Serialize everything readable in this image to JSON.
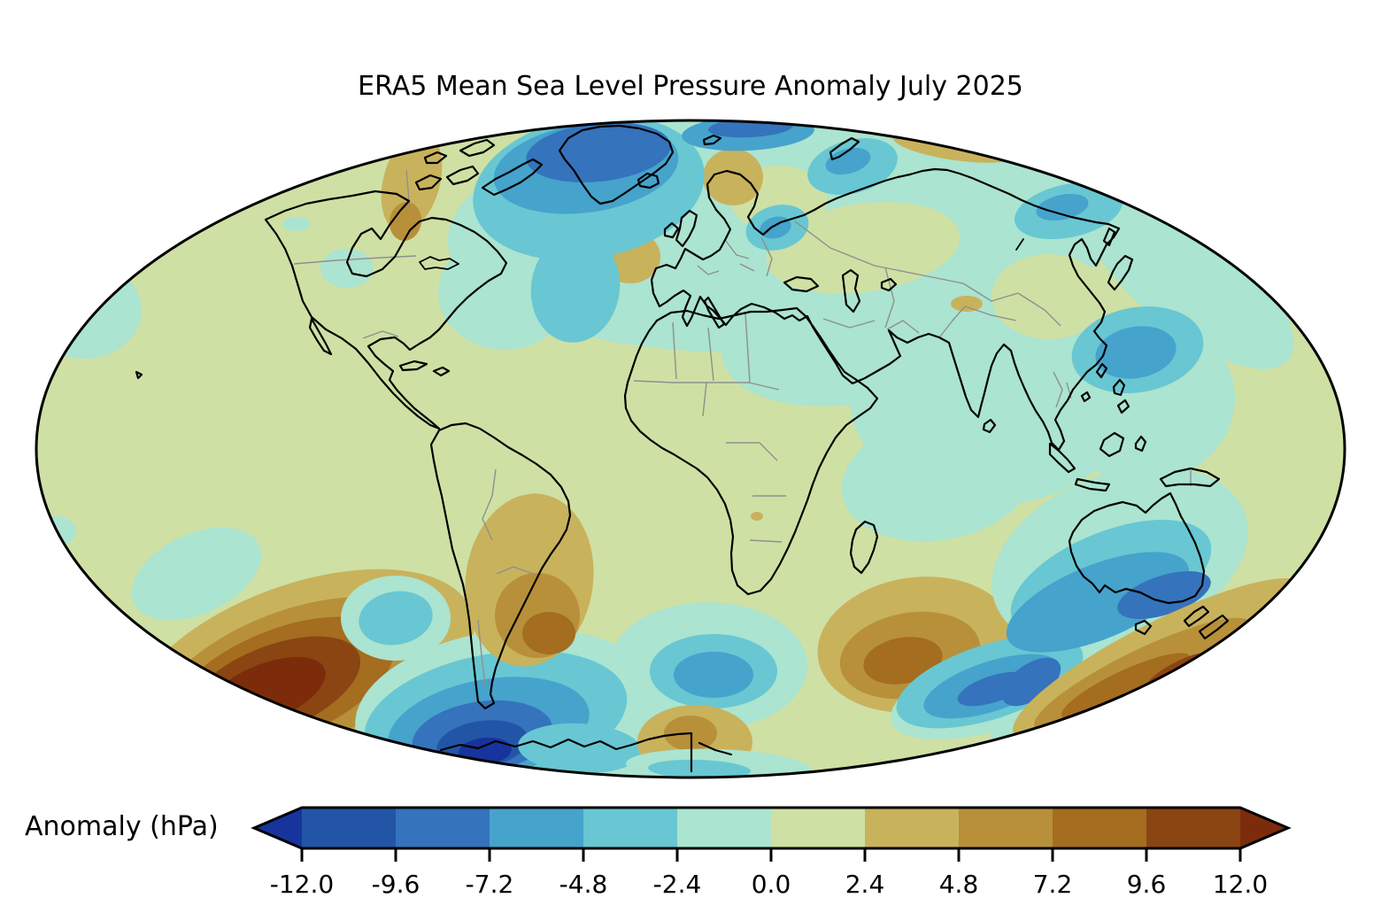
{
  "title": "ERA5 Mean Sea Level Pressure Anomaly July 2025",
  "colorbar": {
    "label": "Anomaly (hPa)",
    "tick_labels": [
      "-12.0",
      "-9.6",
      "-7.2",
      "-4.8",
      "-2.4",
      "0.0",
      "2.4",
      "4.8",
      "7.2",
      "9.6",
      "12.0"
    ],
    "segment_colors": [
      "#2355a7",
      "#3573bc",
      "#46a3cc",
      "#68c7d2",
      "#abe4d0",
      "#cfe0a4",
      "#c9b25c",
      "#b8903a",
      "#a46d20",
      "#8a4513"
    ],
    "extend_low_color": "#16349c",
    "extend_high_color": "#7c2c0a"
  },
  "chart_data": {
    "type": "heatmap",
    "title": "ERA5 Mean Sea Level Pressure Anomaly July 2025",
    "variable": "Mean sea level pressure anomaly",
    "units": "hPa",
    "projection": "Mollweide",
    "colorbar_label": "Anomaly (hPa)",
    "levels": [
      -12,
      -9.6,
      -7.2,
      -4.8,
      -2.4,
      0,
      2.4,
      4.8,
      7.2,
      9.6,
      12
    ],
    "palette": [
      "#16349c",
      "#2355a7",
      "#3573bc",
      "#46a3cc",
      "#68c7d2",
      "#abe4d0",
      "#cfe0a4",
      "#c9b25c",
      "#b8903a",
      "#a46d20",
      "#8a4513",
      "#7c2c0a"
    ],
    "palette_bins": [
      "< -12",
      "-12..-9.6",
      "-9.6..-7.2",
      "-7.2..-4.8",
      "-4.8..-2.4",
      "-2.4..0",
      "0..2.4",
      "2.4..4.8",
      "4.8..7.2",
      "7.2..9.6",
      "9.6..12",
      "> 12"
    ],
    "base_bin": 6,
    "features_format": "[name, cx_px, cy_px, rx_px, ry_px, rotation_deg, palette_bin_index]",
    "features": [
      [
        "arctic-eurasia-neg",
        890,
        255,
        385,
        142,
        -3,
        5
      ],
      [
        "mideast-neg",
        990,
        360,
        180,
        90,
        -15,
        5
      ],
      [
        "south-asia-neg",
        1120,
        450,
        160,
        120,
        0,
        5
      ],
      [
        "indian-ocean-neg",
        1060,
        540,
        110,
        70,
        -10,
        5
      ],
      [
        "east-asia-neg",
        1290,
        450,
        105,
        95,
        0,
        5
      ],
      [
        "northeast-rim-neg",
        1340,
        310,
        150,
        60,
        40,
        5
      ],
      [
        "nw-atlantic-neg",
        570,
        330,
        75,
        65,
        0,
        5
      ],
      [
        "canada-prairie-neg",
        392,
        303,
        30,
        22,
        0,
        5
      ],
      [
        "east-pacific-neg",
        95,
        350,
        65,
        55,
        0,
        5
      ],
      [
        "left-rim-neg",
        60,
        600,
        26,
        18,
        0,
        5
      ],
      [
        "bering-neg",
        335,
        253,
        16,
        8,
        0,
        5
      ],
      [
        "west-russia-neutral",
        975,
        280,
        110,
        50,
        -8,
        6
      ],
      [
        "scandinavia-neutral",
        880,
        225,
        55,
        38,
        0,
        6
      ],
      [
        "east-china-neutral",
        1185,
        335,
        65,
        48,
        0,
        6
      ],
      [
        "scandinavia-pos",
        828,
        200,
        34,
        32,
        0,
        7
      ],
      [
        "yukon-pos",
        465,
        205,
        32,
        58,
        15,
        7
      ],
      [
        "yukon-pos-core",
        458,
        250,
        18,
        22,
        10,
        8
      ],
      [
        "siberia-rim-pos",
        1080,
        165,
        72,
        16,
        8,
        7
      ],
      [
        "biscay-pos",
        712,
        290,
        34,
        30,
        0,
        7
      ],
      [
        "tibet-pos",
        1092,
        343,
        18,
        9,
        0,
        7
      ],
      [
        "angola-pos",
        855,
        583,
        7,
        5,
        0,
        7
      ],
      [
        "greenland-neg-l1",
        665,
        212,
        132,
        80,
        -10,
        4
      ],
      [
        "atlantic-tongue-neg",
        650,
        325,
        50,
        62,
        8,
        4
      ],
      [
        "greenland-neg-l2",
        662,
        190,
        105,
        50,
        -8,
        3
      ],
      [
        "greenland-neg-l3",
        676,
        172,
        82,
        33,
        -6,
        2
      ],
      [
        "svalbard-neg-l2",
        845,
        150,
        75,
        20,
        -3,
        3
      ],
      [
        "svalbard-neg-l3",
        848,
        144,
        48,
        11,
        -3,
        2
      ],
      [
        "kara-neg-l1",
        963,
        188,
        52,
        30,
        -15,
        4
      ],
      [
        "kara-neg-l2",
        958,
        182,
        26,
        14,
        -15,
        3
      ],
      [
        "east-siberia-neg-l1",
        1207,
        238,
        62,
        30,
        -12,
        4
      ],
      [
        "east-siberia-neg-l2",
        1200,
        234,
        30,
        14,
        -12,
        3
      ],
      [
        "baltic-neg-l1",
        878,
        257,
        36,
        25,
        -15,
        4
      ],
      [
        "baltic-neg-l2",
        876,
        257,
        18,
        12,
        -15,
        3
      ],
      [
        "nw-pacific-neg-l1",
        1285,
        395,
        75,
        48,
        -10,
        4
      ],
      [
        "nw-pacific-neg-l2",
        1283,
        398,
        46,
        29,
        -10,
        3
      ],
      [
        "south-pacific-pos-l1",
        340,
        760,
        205,
        100,
        -20,
        7
      ],
      [
        "south-pacific-pos-l2",
        330,
        768,
        165,
        78,
        -21,
        8
      ],
      [
        "south-pacific-pos-l3",
        318,
        773,
        135,
        62,
        -22,
        9
      ],
      [
        "south-pacific-pos-l4",
        308,
        778,
        105,
        48,
        -22,
        10
      ],
      [
        "south-pacific-pos-l5",
        300,
        782,
        72,
        32,
        -22,
        11
      ],
      [
        "south-indian-pos-l1",
        1035,
        728,
        112,
        76,
        -8,
        7
      ],
      [
        "south-indian-pos-l2",
        1028,
        740,
        80,
        48,
        -10,
        8
      ],
      [
        "south-indian-pos-l3",
        1020,
        746,
        45,
        26,
        -10,
        9
      ],
      [
        "se-pacific-neg-a",
        222,
        648,
        78,
        45,
        -25,
        5
      ],
      [
        "se-pacific-neg-b",
        447,
        698,
        62,
        48,
        0,
        5
      ],
      [
        "se-pacific-neg-b-core",
        447,
        698,
        42,
        30,
        -10,
        4
      ],
      [
        "southam-south-neg-l0",
        570,
        800,
        170,
        88,
        -8,
        5
      ],
      [
        "south-atlantic-neg-l0",
        800,
        752,
        112,
        72,
        0,
        5
      ],
      [
        "antarctic-band-neg",
        660,
        832,
        120,
        48,
        4,
        5
      ],
      [
        "south-indian-band-neg",
        1140,
        772,
        140,
        48,
        -18,
        5
      ],
      [
        "australia-neg-l0",
        1265,
        630,
        150,
        95,
        -20,
        5
      ],
      [
        "nz-rim-neg",
        1240,
        790,
        130,
        40,
        -22,
        5
      ],
      [
        "southam-south-neg-l1",
        560,
        810,
        150,
        72,
        -10,
        4
      ],
      [
        "southam-south-neg-l2",
        552,
        822,
        115,
        55,
        -10,
        3
      ],
      [
        "southam-south-neg-l3",
        545,
        832,
        80,
        40,
        -8,
        2
      ],
      [
        "southam-south-neg-l4",
        545,
        840,
        52,
        26,
        -8,
        1
      ],
      [
        "southam-south-neg-l5",
        548,
        848,
        30,
        15,
        -5,
        0
      ],
      [
        "south-atlantic-neg-l1",
        806,
        758,
        72,
        42,
        0,
        4
      ],
      [
        "south-atlantic-neg-l2",
        806,
        762,
        45,
        26,
        0,
        3
      ],
      [
        "south-indian-neg-l1",
        1118,
        770,
        110,
        42,
        -18,
        4
      ],
      [
        "south-indian-neg-l2",
        1120,
        775,
        80,
        28,
        -18,
        3
      ],
      [
        "south-indian-neg-l3",
        1122,
        778,
        42,
        15,
        -18,
        2
      ],
      [
        "australia-neg-l1",
        1255,
        655,
        120,
        55,
        -22,
        4
      ],
      [
        "australia-neg-l2",
        1240,
        680,
        110,
        42,
        -22,
        3
      ],
      [
        "tasman-neg-l3",
        1315,
        672,
        55,
        22,
        -18,
        2
      ],
      [
        "australia-sw-neg-l3",
        1165,
        770,
        38,
        20,
        -35,
        2
      ],
      [
        "antarctic-band-neg-core",
        655,
        845,
        70,
        28,
        3,
        4
      ],
      [
        "southam-pos-l1",
        598,
        655,
        72,
        98,
        8,
        7
      ],
      [
        "southam-pos-l2",
        607,
        695,
        48,
        48,
        0,
        8
      ],
      [
        "southam-pos-l3",
        620,
        715,
        30,
        24,
        0,
        9
      ],
      [
        "antarctica-pos-l1",
        785,
        838,
        65,
        42,
        0,
        7
      ],
      [
        "antarctica-pos-l2",
        780,
        828,
        30,
        20,
        0,
        8
      ],
      [
        "antarctic-rim-neg",
        812,
        866,
        105,
        20,
        2,
        5
      ],
      [
        "antarctic-rim-neg-core",
        790,
        869,
        58,
        11,
        2,
        4
      ],
      [
        "nz-rim-pos-l1",
        1310,
        745,
        185,
        42,
        -27,
        7
      ],
      [
        "nz-rim-pos-l2",
        1290,
        762,
        135,
        28,
        -26,
        8
      ],
      [
        "nz-rim-pos-l3",
        1272,
        775,
        80,
        18,
        -25,
        9
      ],
      [
        "nz-rim-pos-l4",
        1330,
        758,
        40,
        10,
        -28,
        10
      ]
    ],
    "legend_position": "bottom",
    "grid": false
  }
}
